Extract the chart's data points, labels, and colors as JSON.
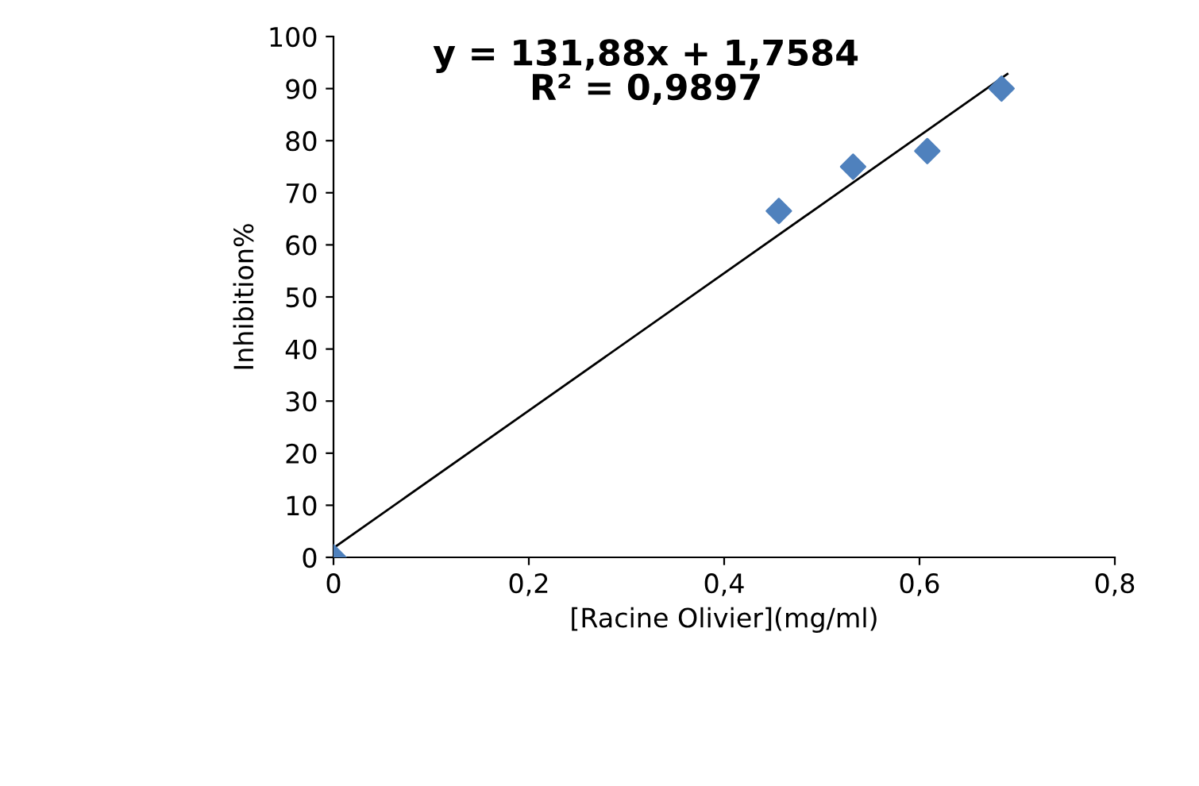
{
  "chart_data": {
    "type": "scatter",
    "xlabel": "[Racine Olivier](mg/ml)",
    "ylabel": "Inhibition%",
    "xlim": [
      0,
      0.8
    ],
    "xticks": [
      {
        "value": 0,
        "label": "0"
      },
      {
        "value": 0.2,
        "label": "0,2"
      },
      {
        "value": 0.4,
        "label": "0,4"
      },
      {
        "value": 0.6,
        "label": "0,6"
      },
      {
        "value": 0.8,
        "label": "0,8"
      }
    ],
    "ylim": [
      0,
      100
    ],
    "yticks": [
      0,
      10,
      20,
      30,
      40,
      50,
      60,
      70,
      80,
      90,
      100
    ],
    "grid": false,
    "legend": false,
    "series": [
      {
        "marker": "diamond",
        "color": "#4f81bd",
        "x": [
          0,
          0.456,
          0.532,
          0.608,
          0.684
        ],
        "values": [
          0,
          66.5,
          75,
          78,
          90
        ]
      },
      {
        "type": "line",
        "marker": "none",
        "color": "#000000",
        "x": [
          0,
          0.69
        ],
        "values": [
          1.8,
          92.8
        ]
      }
    ],
    "annotations": [
      "y = 131,88x + 1,7584\nR² = 0,9897"
    ]
  }
}
